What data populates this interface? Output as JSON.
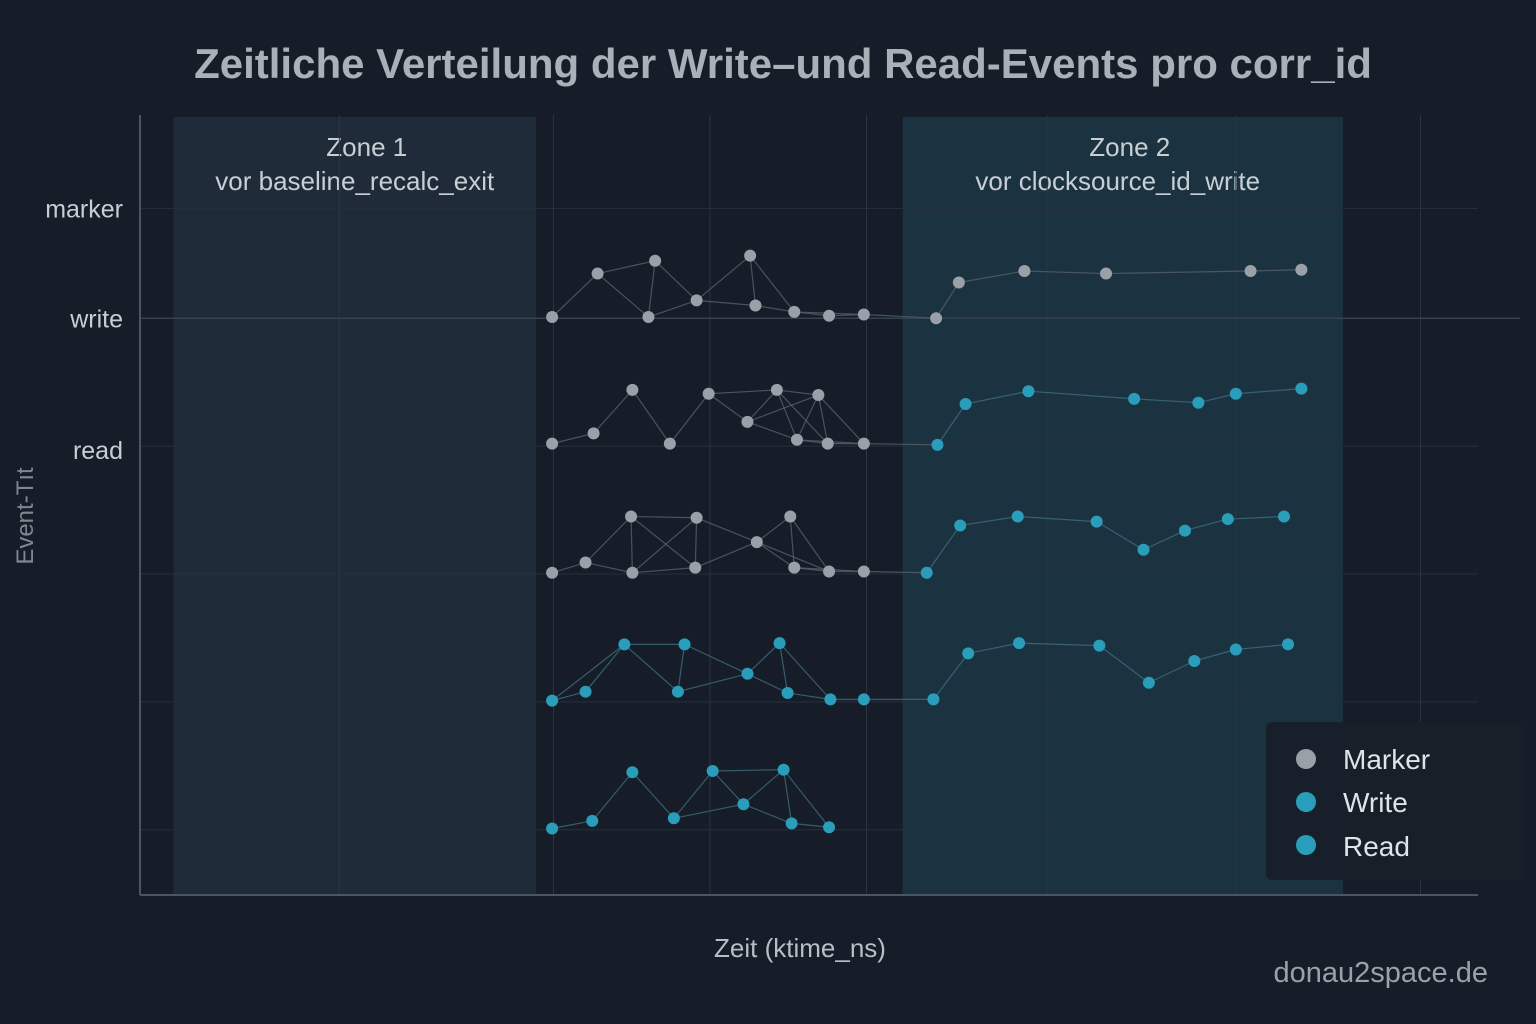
{
  "chart_data": {
    "type": "scatter",
    "title": "Zeitliche Verteilung der Write–und Read-Events pro corr_id",
    "xlabel": "Zeit (ktime_ns)",
    "ylabel": "Event-Tıt",
    "xlim": [
      0,
      100
    ],
    "ylim": [
      -0.51,
      5.59
    ],
    "grid": true,
    "x_gridlines": [
      14.9,
      30.9,
      42.6,
      54.3,
      67.8,
      81.9,
      95.7
    ],
    "y_gridlines": [
      0,
      1,
      2,
      3,
      4,
      4.86
    ],
    "y_ticks": [
      {
        "label": "marker",
        "value": 4.86
      },
      {
        "label": "write",
        "value": 4.0
      },
      {
        "label": "read",
        "value": 2.97
      }
    ],
    "zones": [
      {
        "title": "Zone 1",
        "subtitle": "vor baseline_recalc_exit",
        "x_range": [
          2.5,
          29.6
        ]
      },
      {
        "title": "Zone 2",
        "subtitle": "vor clocksource_id_write",
        "x_range": [
          57.0,
          89.9
        ]
      }
    ],
    "colors": {
      "marker": "#9aa0a8",
      "write": "#2a9dbb",
      "read": "#2a9dbb",
      "zone1": "#1f2b38",
      "zone2": "#1b3340"
    },
    "legend": {
      "placement": "bottom-right",
      "entries": [
        {
          "label": "Marker",
          "series": "marker"
        },
        {
          "label": "Write",
          "series": "write"
        },
        {
          "label": "Read",
          "series": "read"
        }
      ]
    },
    "clusters": [
      {
        "row": 4,
        "points": [
          [
            30.8,
            4.01,
            "marker"
          ],
          [
            34.2,
            4.35,
            "marker"
          ],
          [
            38.5,
            4.45,
            "marker"
          ],
          [
            38.0,
            4.01,
            "marker"
          ],
          [
            41.6,
            4.14,
            "marker"
          ],
          [
            45.6,
            4.49,
            "marker"
          ],
          [
            46.0,
            4.1,
            "marker"
          ],
          [
            48.9,
            4.05,
            "marker"
          ],
          [
            51.5,
            4.02,
            "marker"
          ],
          [
            54.1,
            4.03,
            "marker"
          ],
          [
            59.5,
            4.0,
            "marker"
          ],
          [
            61.2,
            4.28,
            "marker"
          ],
          [
            66.1,
            4.37,
            "marker"
          ],
          [
            72.2,
            4.35,
            "marker"
          ],
          [
            83.0,
            4.37,
            "marker"
          ],
          [
            86.8,
            4.38,
            "marker"
          ]
        ]
      },
      {
        "row": 3,
        "points": [
          [
            30.8,
            3.02,
            "marker"
          ],
          [
            33.9,
            3.1,
            "marker"
          ],
          [
            36.8,
            3.44,
            "marker"
          ],
          [
            39.6,
            3.02,
            "marker"
          ],
          [
            42.5,
            3.41,
            "marker"
          ],
          [
            45.4,
            3.19,
            "marker"
          ],
          [
            47.6,
            3.44,
            "marker"
          ],
          [
            49.1,
            3.05,
            "marker"
          ],
          [
            50.7,
            3.4,
            "marker"
          ],
          [
            51.4,
            3.02,
            "marker"
          ],
          [
            54.1,
            3.02,
            "marker"
          ],
          [
            59.6,
            3.01,
            "read"
          ],
          [
            61.7,
            3.33,
            "read"
          ],
          [
            66.4,
            3.43,
            "read"
          ],
          [
            74.3,
            3.37,
            "read"
          ],
          [
            79.1,
            3.34,
            "read"
          ],
          [
            81.9,
            3.41,
            "read"
          ],
          [
            86.8,
            3.45,
            "read"
          ]
        ]
      },
      {
        "row": 2,
        "points": [
          [
            30.8,
            2.01,
            "marker"
          ],
          [
            33.3,
            2.09,
            "marker"
          ],
          [
            36.7,
            2.45,
            "marker"
          ],
          [
            36.8,
            2.01,
            "marker"
          ],
          [
            41.5,
            2.05,
            "marker"
          ],
          [
            41.6,
            2.44,
            "marker"
          ],
          [
            46.1,
            2.25,
            "marker"
          ],
          [
            48.6,
            2.45,
            "marker"
          ],
          [
            48.9,
            2.05,
            "marker"
          ],
          [
            51.5,
            2.02,
            "marker"
          ],
          [
            54.1,
            2.02,
            "marker"
          ],
          [
            58.8,
            2.01,
            "read"
          ],
          [
            61.3,
            2.38,
            "read"
          ],
          [
            65.6,
            2.45,
            "read"
          ],
          [
            71.5,
            2.41,
            "read"
          ],
          [
            75.0,
            2.19,
            "read"
          ],
          [
            78.1,
            2.34,
            "read"
          ],
          [
            81.3,
            2.43,
            "read"
          ],
          [
            85.5,
            2.45,
            "read"
          ]
        ]
      },
      {
        "row": 1,
        "points": [
          [
            30.8,
            1.01,
            "read"
          ],
          [
            33.3,
            1.08,
            "read"
          ],
          [
            36.2,
            1.45,
            "read"
          ],
          [
            40.2,
            1.08,
            "read"
          ],
          [
            40.7,
            1.45,
            "read"
          ],
          [
            45.4,
            1.22,
            "read"
          ],
          [
            47.8,
            1.46,
            "read"
          ],
          [
            48.4,
            1.07,
            "read"
          ],
          [
            51.6,
            1.02,
            "read"
          ],
          [
            54.1,
            1.02,
            "read"
          ],
          [
            59.3,
            1.02,
            "read"
          ],
          [
            61.9,
            1.38,
            "read"
          ],
          [
            65.7,
            1.46,
            "read"
          ],
          [
            71.7,
            1.44,
            "read"
          ],
          [
            75.4,
            1.15,
            "read"
          ],
          [
            78.8,
            1.32,
            "read"
          ],
          [
            81.9,
            1.41,
            "read"
          ],
          [
            85.8,
            1.45,
            "read"
          ]
        ]
      },
      {
        "row": 0,
        "points": [
          [
            30.8,
            0.01,
            "read"
          ],
          [
            33.8,
            0.07,
            "read"
          ],
          [
            36.8,
            0.45,
            "read"
          ],
          [
            39.9,
            0.09,
            "read"
          ],
          [
            42.8,
            0.46,
            "read"
          ],
          [
            45.1,
            0.2,
            "read"
          ],
          [
            48.1,
            0.47,
            "read"
          ],
          [
            48.7,
            0.05,
            "read"
          ],
          [
            51.5,
            0.02,
            "read"
          ]
        ]
      }
    ]
  },
  "watermark": "donau2space.de"
}
